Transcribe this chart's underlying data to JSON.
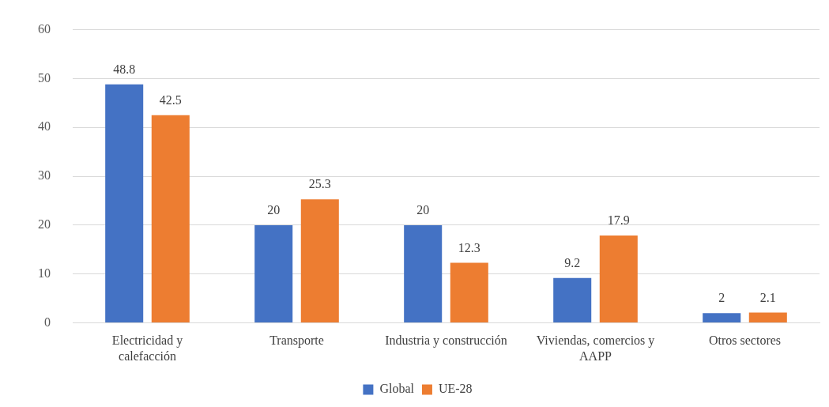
{
  "chart_data": {
    "type": "bar",
    "categories": [
      "Electricidad y calefacción",
      "Transporte",
      "Industria y construcción",
      "Viviendas, comercios y AAPP",
      "Otros sectores"
    ],
    "series": [
      {
        "name": "Global",
        "color": "#4472c4",
        "values": [
          48.8,
          20,
          20,
          9.2,
          2
        ]
      },
      {
        "name": "UE-28",
        "color": "#ed7d31",
        "values": [
          42.5,
          25.3,
          12.3,
          17.9,
          2.1
        ]
      }
    ],
    "ylim": [
      0,
      60
    ],
    "yticks": [
      0,
      10,
      20,
      30,
      40,
      50,
      60
    ],
    "grid": "y",
    "legend": "bottom",
    "data_labels": true
  }
}
